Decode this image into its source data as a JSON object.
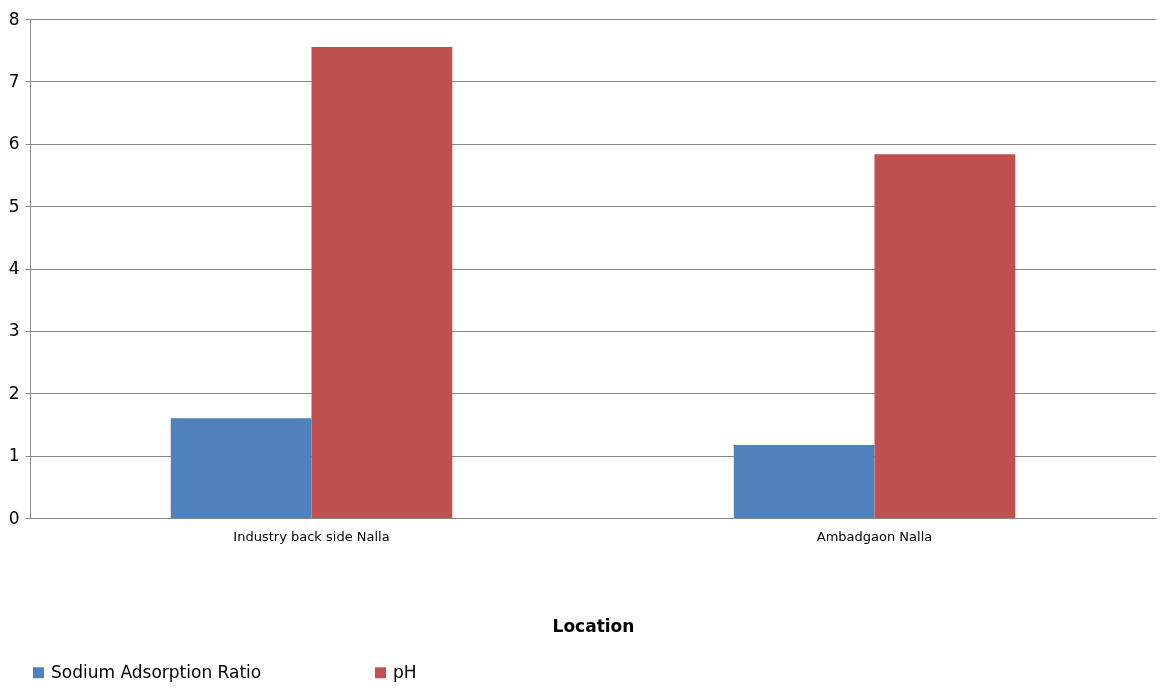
{
  "chart_data": {
    "type": "bar",
    "xlabel": "Location",
    "categories": [
      "Industry back side Nalla",
      "Ambadgaon Nalla"
    ],
    "series": [
      {
        "name": "Sodium Adsorption Ratio",
        "color": "#4f81bd",
        "values": [
          1.6,
          1.17
        ]
      },
      {
        "name": "pH",
        "color": "#c0504d",
        "values": [
          7.55,
          5.83
        ]
      }
    ],
    "ylim": [
      0,
      8
    ],
    "yticks": [
      0,
      1,
      2,
      3,
      4,
      5,
      6,
      7,
      8
    ],
    "grid": "y",
    "legend": "bottom"
  }
}
